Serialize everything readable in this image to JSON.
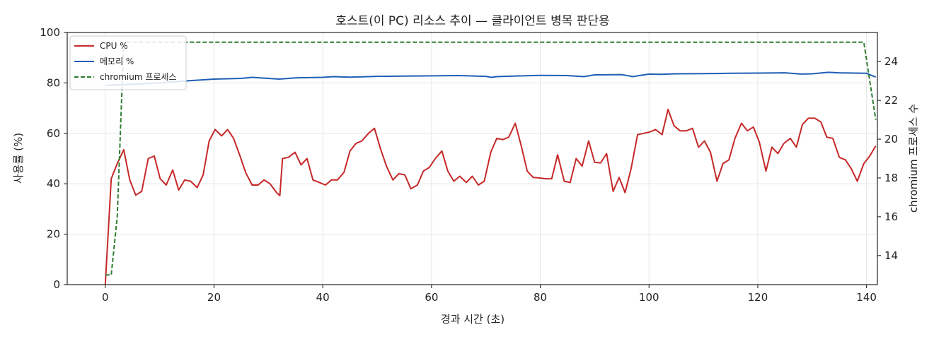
{
  "chart_data": {
    "type": "line",
    "title": "호스트(이 PC) 리소스 추이 — 클라이언트 병목 판단용",
    "xlabel": "경과 시간 (초)",
    "ylabel": "사용률 (%)",
    "y2label": "chromium 프로세스 수",
    "xlim": [
      -7,
      142
    ],
    "ylim": [
      0,
      100
    ],
    "y2lim": [
      12.5,
      25.5
    ],
    "x_ticks": [
      0,
      20,
      40,
      60,
      80,
      100,
      120,
      140
    ],
    "y_ticks": [
      0,
      20,
      40,
      60,
      80,
      100
    ],
    "y2_ticks": [
      14,
      16,
      18,
      20,
      22,
      24
    ],
    "grid": true,
    "legend_position": "top-left",
    "colors": {
      "cpu": "#c62828",
      "memory": "#1f5fb5",
      "chromium": "#2e7d32"
    },
    "series": [
      {
        "name": "CPU %",
        "axis": "left",
        "style": "solid",
        "points": [
          [
            0,
            0
          ],
          [
            1.1,
            42
          ],
          [
            2.2,
            48
          ],
          [
            3.4,
            53.5
          ],
          [
            4.5,
            41.5
          ],
          [
            5.6,
            35.5
          ],
          [
            6.7,
            37
          ],
          [
            7.9,
            50
          ],
          [
            9,
            51
          ],
          [
            10.1,
            42
          ],
          [
            11.2,
            39.5
          ],
          [
            12.4,
            45.5
          ],
          [
            13.5,
            37.5
          ],
          [
            14.6,
            41.5
          ],
          [
            15.7,
            41
          ],
          [
            16.9,
            38.5
          ],
          [
            18,
            43.5
          ],
          [
            19.1,
            57
          ],
          [
            20.2,
            61.5
          ],
          [
            21.4,
            59
          ],
          [
            22.5,
            61.5
          ],
          [
            23.6,
            58
          ],
          [
            24.7,
            51.5
          ],
          [
            25.8,
            44.5
          ],
          [
            27,
            39.5
          ],
          [
            28.1,
            39.5
          ],
          [
            29.2,
            41.5
          ],
          [
            30.3,
            40
          ],
          [
            31.5,
            36.5
          ],
          [
            32.1,
            35.3
          ],
          [
            32.6,
            50
          ],
          [
            33.7,
            50.5
          ],
          [
            34.9,
            52.5
          ],
          [
            36,
            47.5
          ],
          [
            37.1,
            50
          ],
          [
            38.2,
            41.5
          ],
          [
            39.4,
            40.5
          ],
          [
            40.5,
            39.5
          ],
          [
            41.6,
            41.5
          ],
          [
            42.7,
            41.5
          ],
          [
            43.9,
            44.5
          ],
          [
            45,
            53
          ],
          [
            46.1,
            56
          ],
          [
            47.2,
            57
          ],
          [
            48.4,
            60
          ],
          [
            49.5,
            62
          ],
          [
            50.6,
            54
          ],
          [
            51.7,
            47
          ],
          [
            52.9,
            41.5
          ],
          [
            54,
            44
          ],
          [
            55.1,
            43.5
          ],
          [
            56.2,
            38
          ],
          [
            57.4,
            39.5
          ],
          [
            58.5,
            45
          ],
          [
            59.6,
            46.5
          ],
          [
            60.7,
            50
          ],
          [
            61.9,
            53
          ],
          [
            63,
            45
          ],
          [
            64.1,
            41
          ],
          [
            65.2,
            43
          ],
          [
            66.4,
            40.5
          ],
          [
            67.5,
            43
          ],
          [
            68.6,
            39.5
          ],
          [
            69.7,
            41
          ],
          [
            70.9,
            52.5
          ],
          [
            72,
            58
          ],
          [
            73.1,
            57.5
          ],
          [
            74.2,
            58.5
          ],
          [
            75.4,
            64
          ],
          [
            76.5,
            55
          ],
          [
            77.6,
            45
          ],
          [
            78.7,
            42.5
          ],
          [
            79.9,
            42.3
          ],
          [
            81,
            42
          ],
          [
            82.1,
            42
          ],
          [
            83.2,
            51.5
          ],
          [
            84.4,
            41
          ],
          [
            85.5,
            40.5
          ],
          [
            86.6,
            50
          ],
          [
            87.7,
            47
          ],
          [
            88.9,
            57
          ],
          [
            90,
            48.5
          ],
          [
            91.1,
            48.3
          ],
          [
            92.2,
            52
          ],
          [
            93.4,
            37
          ],
          [
            94.5,
            42.5
          ],
          [
            95.6,
            36.5
          ],
          [
            96.7,
            46
          ],
          [
            97.9,
            59.5
          ],
          [
            99,
            60
          ],
          [
            100.1,
            60.5
          ],
          [
            101.2,
            61.5
          ],
          [
            102.4,
            59.5
          ],
          [
            103.5,
            69.5
          ],
          [
            104.6,
            63
          ],
          [
            105.7,
            61
          ],
          [
            106.9,
            61
          ],
          [
            108,
            62
          ],
          [
            109.1,
            54.5
          ],
          [
            110.2,
            57
          ],
          [
            111.3,
            52.5
          ],
          [
            112.5,
            41
          ],
          [
            113.6,
            48
          ],
          [
            114.7,
            49.5
          ],
          [
            115.8,
            58
          ],
          [
            117,
            64
          ],
          [
            118.1,
            61
          ],
          [
            119.2,
            62.5
          ],
          [
            120.3,
            56.5
          ],
          [
            121.5,
            45
          ],
          [
            122.6,
            54.5
          ],
          [
            123.7,
            52
          ],
          [
            124.8,
            56
          ],
          [
            126,
            58
          ],
          [
            127.1,
            54.5
          ],
          [
            128.2,
            63.5
          ],
          [
            129.3,
            66
          ],
          [
            130.5,
            66
          ],
          [
            131.6,
            64.5
          ],
          [
            132.7,
            58.5
          ],
          [
            133.8,
            58
          ],
          [
            135,
            50.5
          ],
          [
            136.1,
            49.5
          ],
          [
            137.2,
            46
          ],
          [
            138.3,
            41
          ],
          [
            139.5,
            48
          ],
          [
            140.6,
            51
          ],
          [
            141.7,
            55
          ]
        ]
      },
      {
        "name": "메모리 %",
        "axis": "left",
        "style": "solid",
        "points": [
          [
            0,
            79
          ],
          [
            5,
            79.5
          ],
          [
            10,
            80
          ],
          [
            15,
            80.8
          ],
          [
            20,
            81.5
          ],
          [
            25,
            81.8
          ],
          [
            27,
            82.2
          ],
          [
            30,
            81.8
          ],
          [
            32,
            81.5
          ],
          [
            35,
            82
          ],
          [
            40,
            82.2
          ],
          [
            42,
            82.5
          ],
          [
            45,
            82.3
          ],
          [
            50,
            82.6
          ],
          [
            55,
            82.7
          ],
          [
            60,
            82.8
          ],
          [
            65,
            82.9
          ],
          [
            70,
            82.6
          ],
          [
            71,
            82.2
          ],
          [
            72,
            82.5
          ],
          [
            75,
            82.7
          ],
          [
            80,
            83
          ],
          [
            85,
            82.9
          ],
          [
            88,
            82.5
          ],
          [
            90,
            83.2
          ],
          [
            95,
            83.3
          ],
          [
            97,
            82.5
          ],
          [
            100,
            83.5
          ],
          [
            102,
            83.4
          ],
          [
            105,
            83.6
          ],
          [
            110,
            83.7
          ],
          [
            115,
            83.8
          ],
          [
            120,
            83.9
          ],
          [
            125,
            84
          ],
          [
            128,
            83.5
          ],
          [
            130,
            83.6
          ],
          [
            133,
            84.2
          ],
          [
            135,
            84
          ],
          [
            138,
            83.9
          ],
          [
            140,
            83.8
          ],
          [
            141.7,
            82.3
          ]
        ]
      },
      {
        "name": "chromium 프로세스",
        "axis": "right",
        "style": "dashed",
        "points": [
          [
            0,
            13
          ],
          [
            1.1,
            13
          ],
          [
            2.2,
            16
          ],
          [
            3.4,
            25
          ],
          [
            5.6,
            25
          ],
          [
            20,
            25
          ],
          [
            40,
            25
          ],
          [
            60,
            25
          ],
          [
            80,
            25
          ],
          [
            100,
            25
          ],
          [
            120,
            25
          ],
          [
            138.3,
            25
          ],
          [
            139.5,
            25
          ],
          [
            141.7,
            21
          ]
        ]
      }
    ]
  }
}
